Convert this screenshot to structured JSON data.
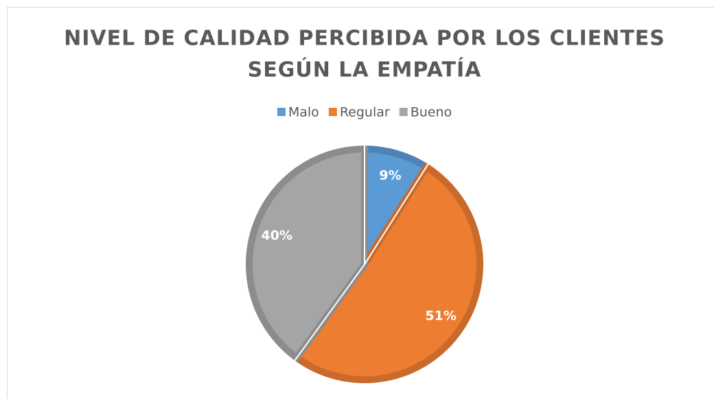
{
  "chart_data": {
    "type": "pie",
    "title": [
      "NIVEL DE CALIDAD PERCIBIDA POR LOS CLIENTES",
      "SEGÚN LA EMPATÍA"
    ],
    "categories": [
      "Malo",
      "Regular",
      "Bueno"
    ],
    "values": [
      9,
      51,
      40
    ],
    "value_labels": [
      "9%",
      "51%",
      "40%"
    ],
    "colors": [
      "#5b9bd5",
      "#ed7d31",
      "#a5a5a5"
    ],
    "legend": "top"
  }
}
